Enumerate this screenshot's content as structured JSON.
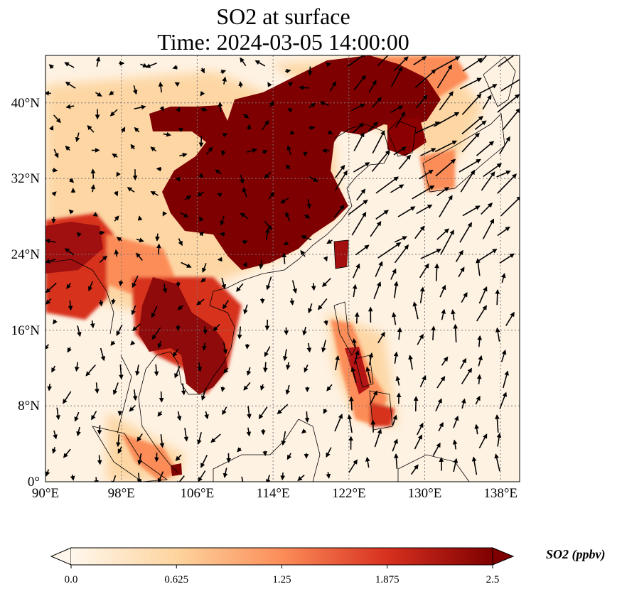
{
  "title": {
    "line1": "SO2 at surface",
    "line2": "Time: 2024-03-05 14:00:00"
  },
  "map": {
    "lon_range": [
      90,
      140
    ],
    "lat_range": [
      0,
      45
    ],
    "lon_ticks": [
      "90°E",
      "98°E",
      "106°E",
      "114°E",
      "122°E",
      "130°E",
      "138°E"
    ],
    "lat_ticks": [
      "0°",
      "8°N",
      "16°N",
      "24°N",
      "32°N",
      "40°N"
    ],
    "gridlines": true,
    "overlay": "wind vectors",
    "colormap": "OrRd"
  },
  "colorbar": {
    "label": "SO2 (ppbv)",
    "min": 0.0,
    "max": 2.5,
    "ticks": [
      "0.0",
      "0.625",
      "1.25",
      "1.875",
      "2.5"
    ],
    "extend": "both",
    "colors": [
      "#fff7ec",
      "#fdd49e",
      "#fc8d59",
      "#d7301f",
      "#7f0000"
    ]
  }
}
